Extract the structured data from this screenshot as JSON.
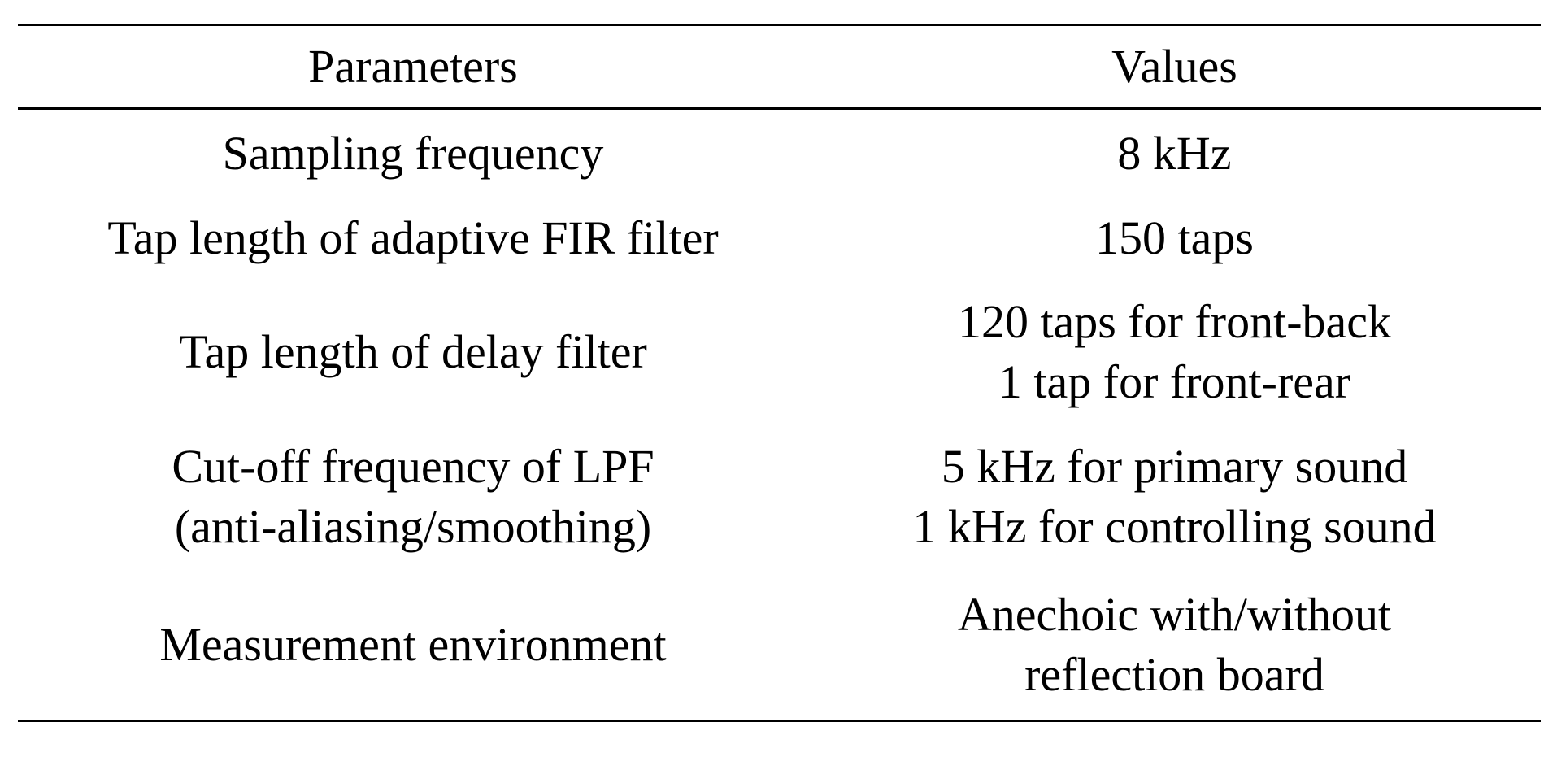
{
  "table": {
    "headers": [
      "Parameters",
      "Values"
    ],
    "rows": [
      {
        "parameter": [
          "Sampling frequency"
        ],
        "value": [
          "8 kHz"
        ]
      },
      {
        "parameter": [
          "Tap length of adaptive FIR filter"
        ],
        "value": [
          "150 taps"
        ]
      },
      {
        "parameter": [
          "Tap length of delay filter"
        ],
        "value": [
          "120 taps for front-back",
          "1 tap for front-rear"
        ]
      },
      {
        "parameter": [
          "Cut-off frequency of LPF",
          "(anti-aliasing/smoothing)"
        ],
        "value": [
          "5 kHz for primary sound",
          "1 kHz for controlling sound"
        ]
      },
      {
        "parameter": [
          "Measurement environment"
        ],
        "value": [
          "Anechoic with/without",
          "reflection board"
        ]
      }
    ]
  }
}
